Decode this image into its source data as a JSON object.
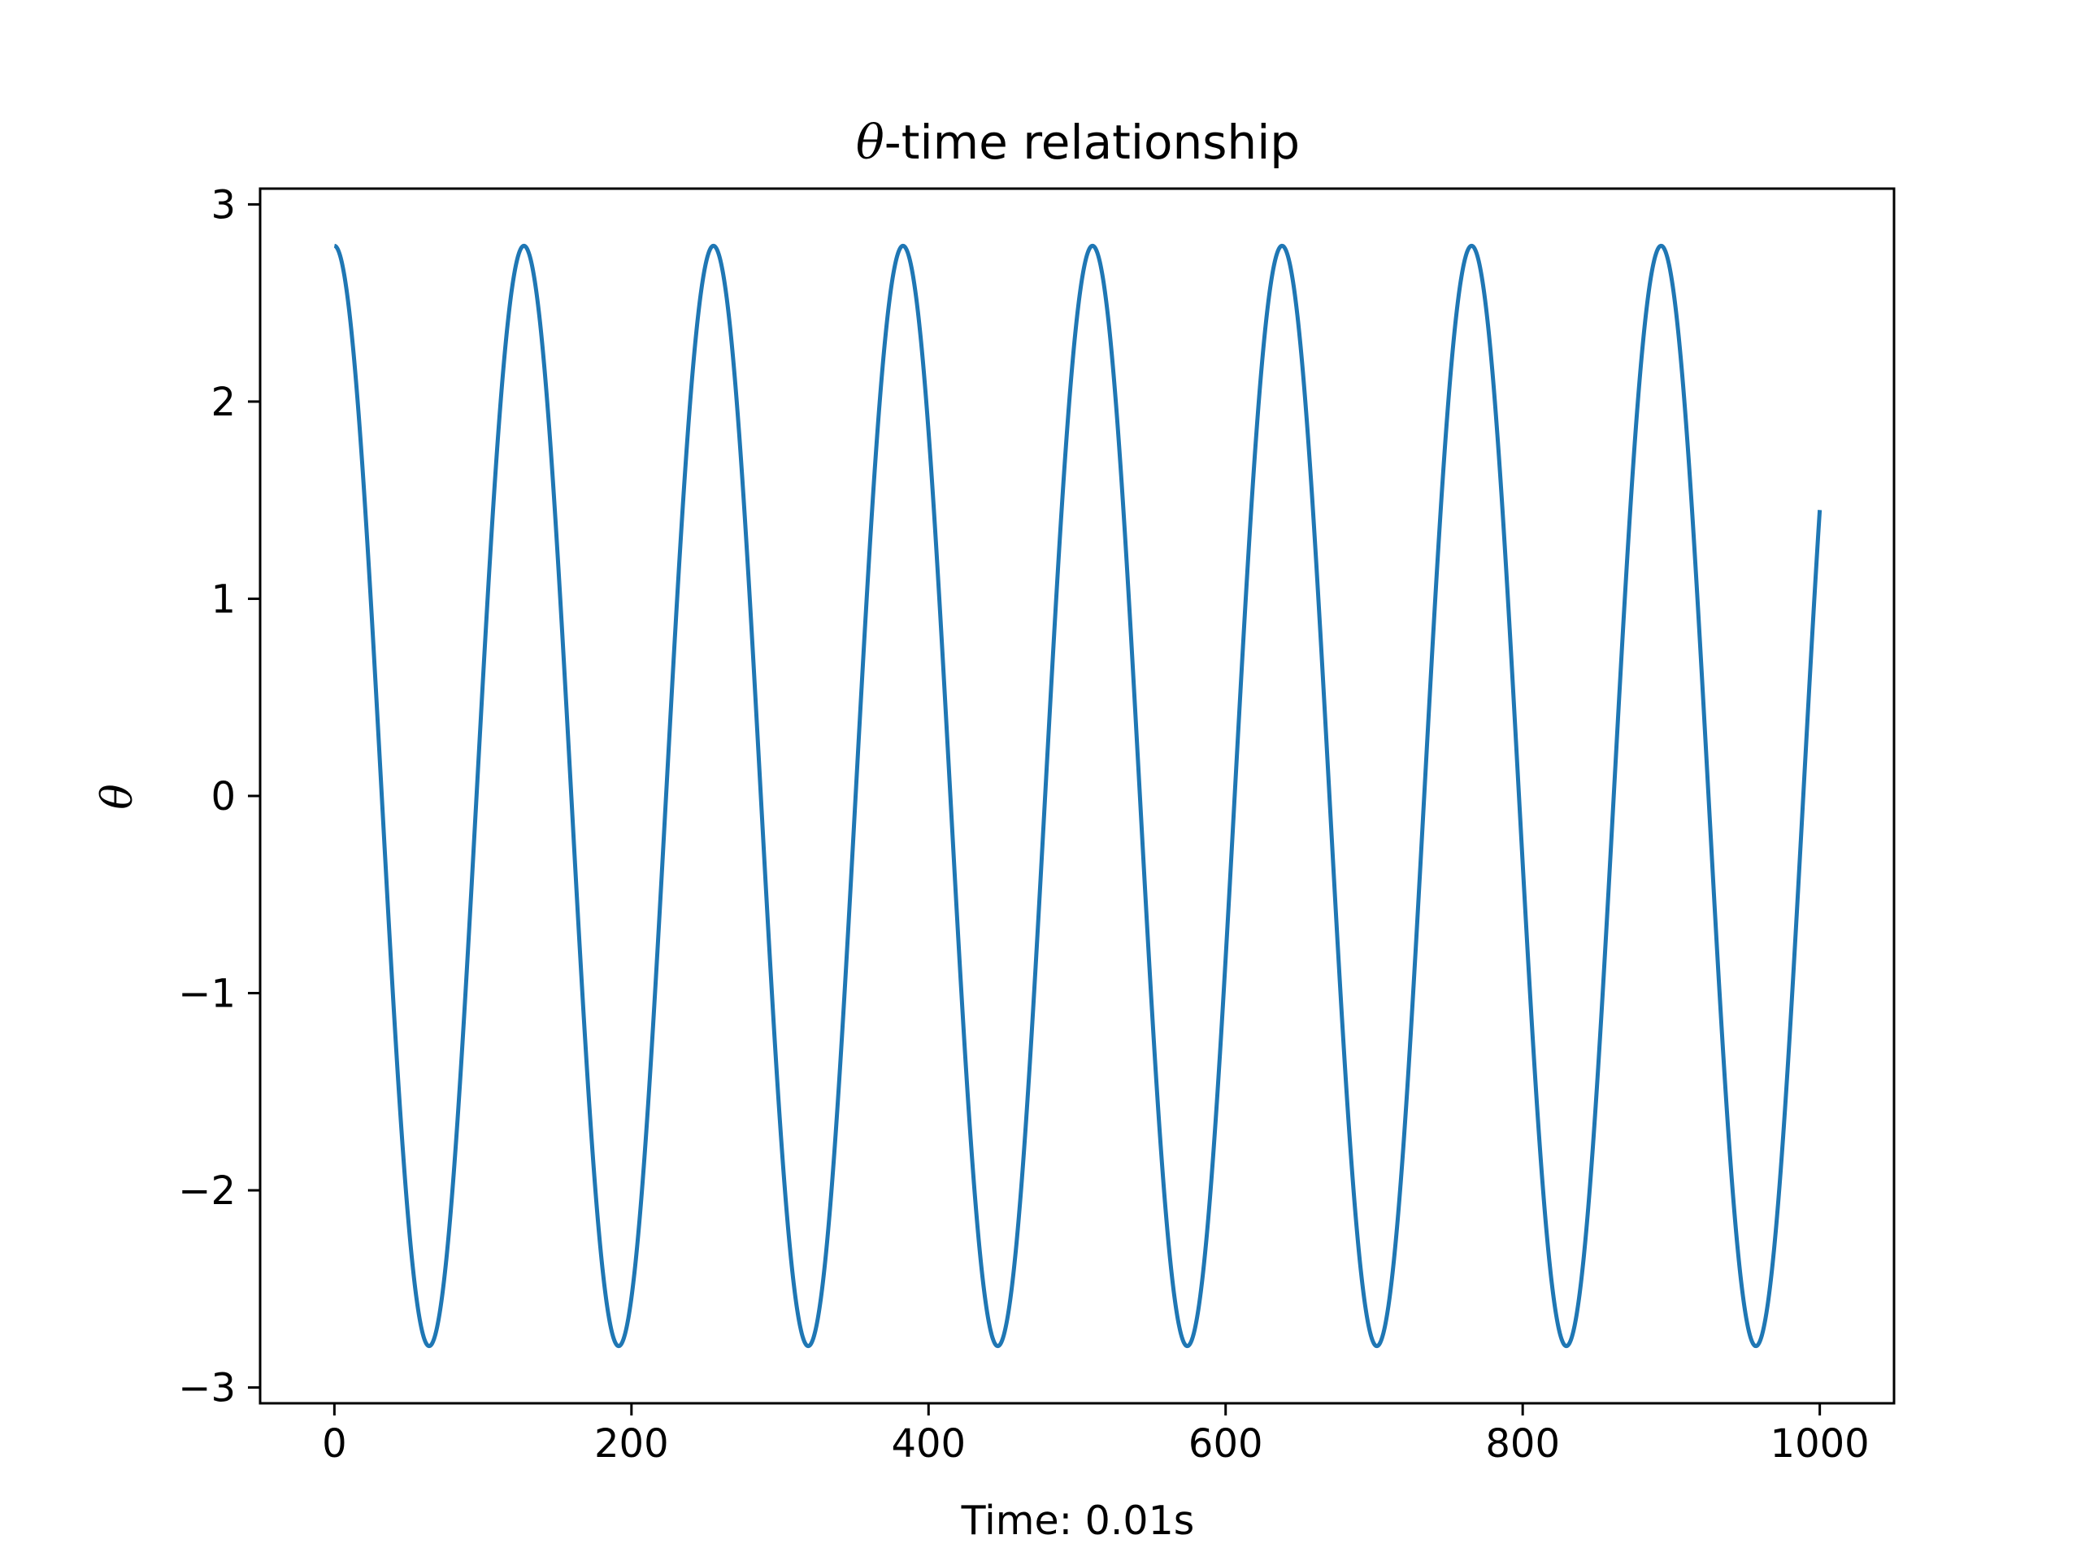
{
  "chart_data": {
    "type": "line",
    "title_symbol": "θ",
    "title_text": "-time relationship",
    "xlabel": "Time: 0.01s",
    "ylabel": "θ",
    "xlim": [
      -50,
      1050
    ],
    "ylim": [
      -3.08,
      3.08
    ],
    "x_ticks": [
      0,
      200,
      400,
      600,
      800,
      1000
    ],
    "x_tick_labels": [
      "0",
      "200",
      "400",
      "600",
      "800",
      "1000"
    ],
    "y_ticks": [
      -3,
      -2,
      -1,
      0,
      1,
      2,
      3
    ],
    "y_tick_labels": [
      "−3",
      "−2",
      "−1",
      "0",
      "1",
      "2",
      "3"
    ],
    "grid": false,
    "legend": "none",
    "series": [
      {
        "color": "#1f77b4",
        "amplitude": 2.79,
        "period": 127.6,
        "x_start": 0,
        "x_end": 1000,
        "points": [
          [
            0,
            2.79
          ],
          [
            64,
            -2.79
          ],
          [
            128,
            2.79
          ],
          [
            192,
            -2.79
          ],
          [
            256,
            2.79
          ],
          [
            320,
            -2.79
          ],
          [
            383,
            2.79
          ],
          [
            447,
            -2.79
          ],
          [
            511,
            2.79
          ],
          [
            575,
            -2.79
          ],
          [
            638,
            2.79
          ],
          [
            702,
            -2.79
          ],
          [
            766,
            2.79
          ],
          [
            830,
            -2.79
          ],
          [
            893,
            2.79
          ],
          [
            957,
            -2.79
          ],
          [
            1000,
            1.89
          ]
        ]
      }
    ]
  }
}
